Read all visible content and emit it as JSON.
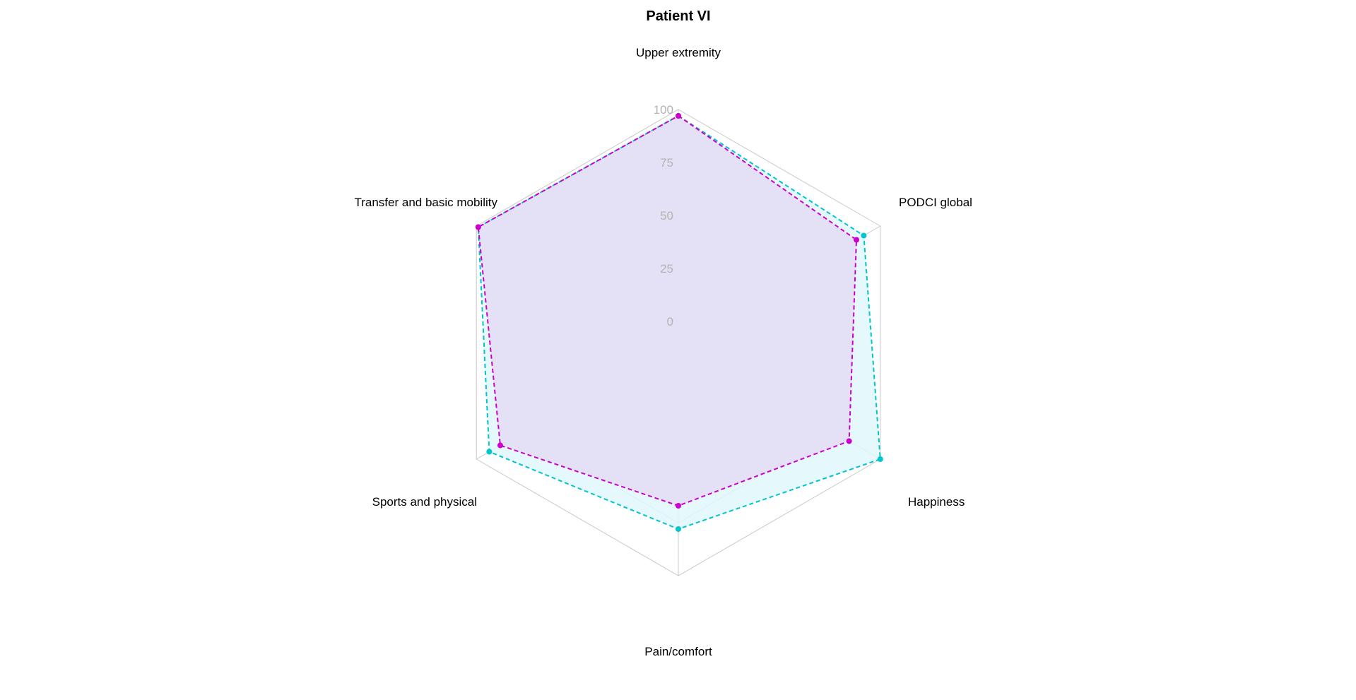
{
  "chart_data": {
    "type": "radar",
    "title": "Patient VI",
    "axes": [
      "Upper extremity",
      "PODCI global",
      "Happiness",
      "Pain/comfort",
      "Sports and physical",
      "Transfer and basic mobility"
    ],
    "ticks": [
      "0",
      "25",
      "50",
      "75",
      "100"
    ],
    "range": [
      0,
      100
    ],
    "grid": true,
    "legend": "none",
    "series": [
      {
        "color": "#00c5cd",
        "fill": "#e0f7fa",
        "values": [
          97,
          91,
          100,
          78,
          93,
          99
        ]
      },
      {
        "color": "#cc00cc",
        "fill": "#e4ddf6",
        "values": [
          97,
          87,
          83,
          67,
          87,
          99
        ]
      }
    ]
  }
}
